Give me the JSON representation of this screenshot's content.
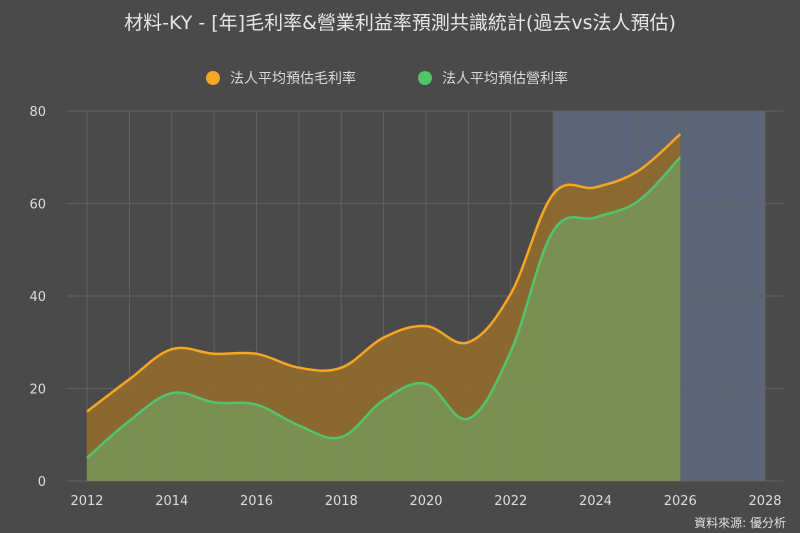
{
  "chart_data": {
    "type": "area",
    "title": "材料-KY - [年]毛利率&營業利益率預測共識統計(過去vs法人預估)",
    "source": "資料來源: 優分析",
    "x": [
      2012,
      2013,
      2014,
      2015,
      2016,
      2017,
      2018,
      2019,
      2020,
      2021,
      2022,
      2023,
      2024,
      2025,
      2026
    ],
    "x_ticks": [
      "2012",
      "2014",
      "2016",
      "2018",
      "2020",
      "2022",
      "2024",
      "2026",
      "2028"
    ],
    "y_ticks": [
      "0",
      "20",
      "40",
      "60",
      "80"
    ],
    "xlim": [
      2012,
      2028
    ],
    "ylim": [
      0,
      80
    ],
    "forecast_band": [
      2023,
      2028
    ],
    "grid": true,
    "legend_position": "top-center",
    "series": [
      {
        "name": "法人平均預估毛利率",
        "color": "#f5a623",
        "values": [
          15,
          22,
          28.5,
          27.5,
          27.5,
          24.5,
          24.5,
          31,
          33.5,
          30,
          40.5,
          62,
          63.5,
          67,
          75
        ]
      },
      {
        "name": "法人平均預估營利率",
        "color": "#52c46a",
        "values": [
          5,
          13,
          19,
          17,
          16.5,
          12,
          9.5,
          17.5,
          21,
          13.5,
          28,
          54,
          57,
          60.5,
          70
        ]
      }
    ],
    "colors": {
      "background": "#4a4a4a",
      "band": "#5c6478",
      "grid": "#626262",
      "gross_fill": "#8f6a2c",
      "op_fill": "#7a9357"
    }
  }
}
